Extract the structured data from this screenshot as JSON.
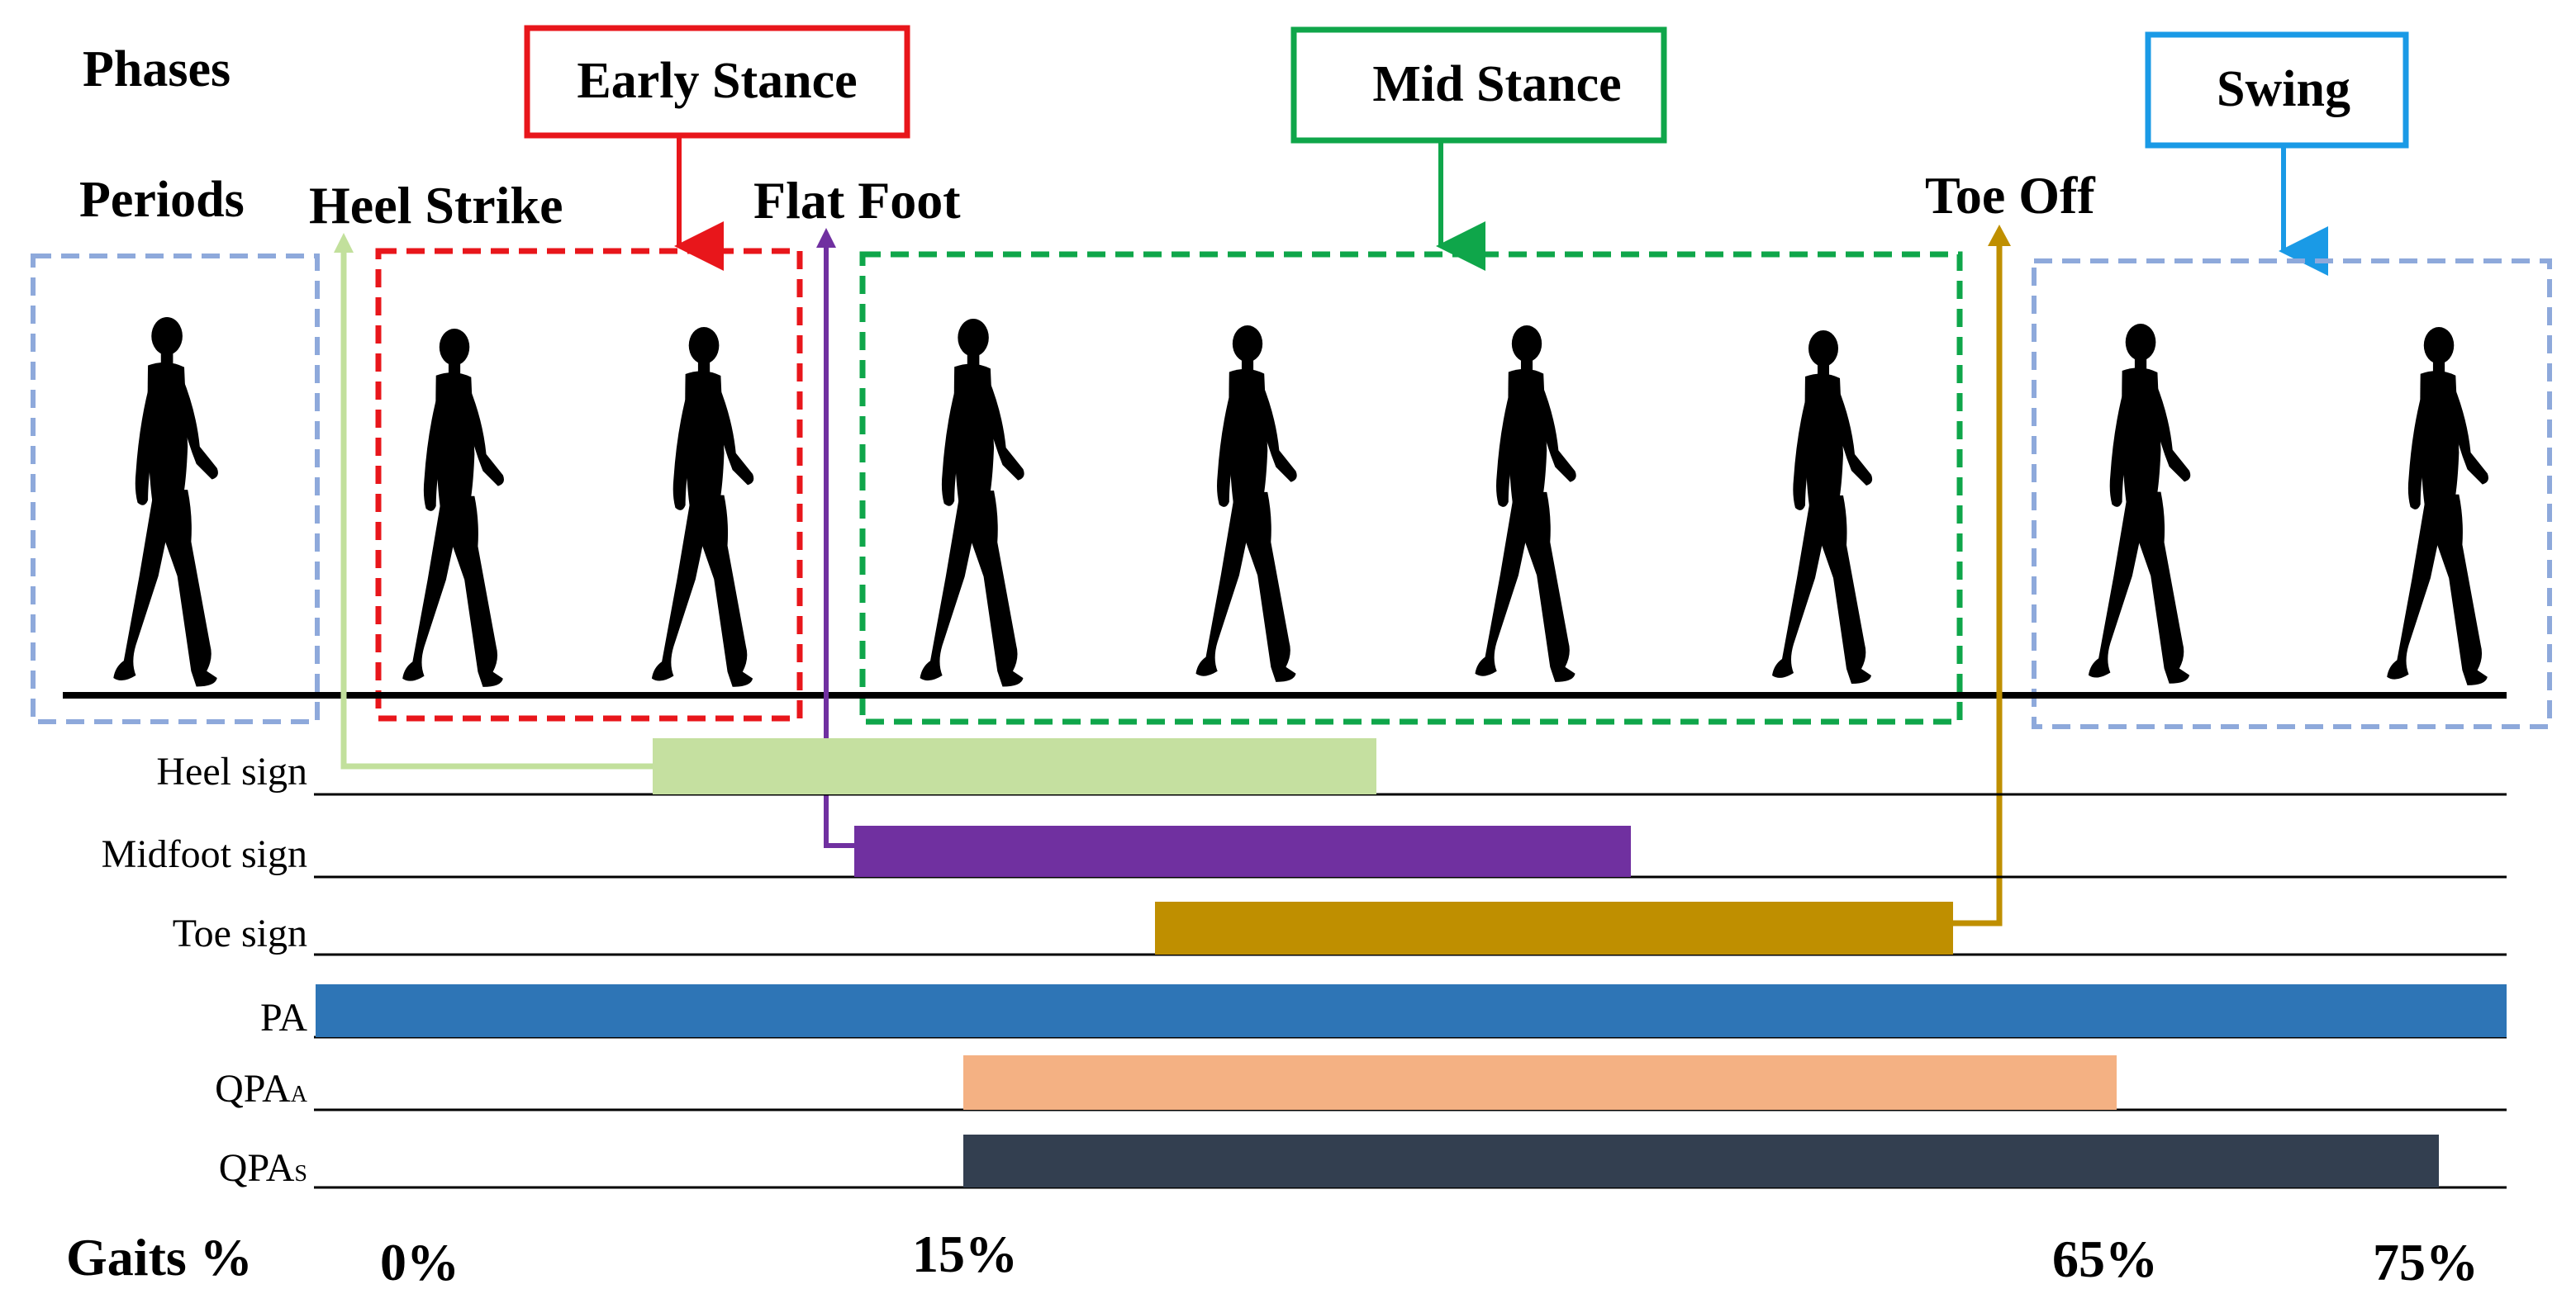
{
  "headings": {
    "phases": "Phases",
    "periods": "Periods",
    "gaits": "Gaits %"
  },
  "phases": [
    {
      "label": "Early Stance",
      "color": "#e8161b"
    },
    {
      "label": "Mid Stance",
      "color": "#0fa64a"
    },
    {
      "label": "Swing",
      "color": "#1a9ae6"
    }
  ],
  "periods": [
    {
      "label": "Heel Strike",
      "color": "#c2e09c"
    },
    {
      "label": "Flat Foot",
      "color": "#7030a0"
    },
    {
      "label": "Toe Off",
      "color": "#bf8f00"
    }
  ],
  "group_box_color": "#8ea9db",
  "signals": [
    {
      "label": "Heel sign",
      "sub": "",
      "color": "#c5e0a0"
    },
    {
      "label": "Midfoot sign",
      "sub": "",
      "color": "#7030a0"
    },
    {
      "label": "Toe sign",
      "sub": "",
      "color": "#bf8f00"
    },
    {
      "label": "PA",
      "sub": "",
      "color": "#2e75b6"
    },
    {
      "label": "QPA",
      "sub": "A",
      "color": "#f4b183"
    },
    {
      "label": "QPA",
      "sub": "S",
      "color": "#333f50"
    }
  ],
  "gait_ticks": [
    "0%",
    "15%",
    "65%",
    "75%"
  ]
}
